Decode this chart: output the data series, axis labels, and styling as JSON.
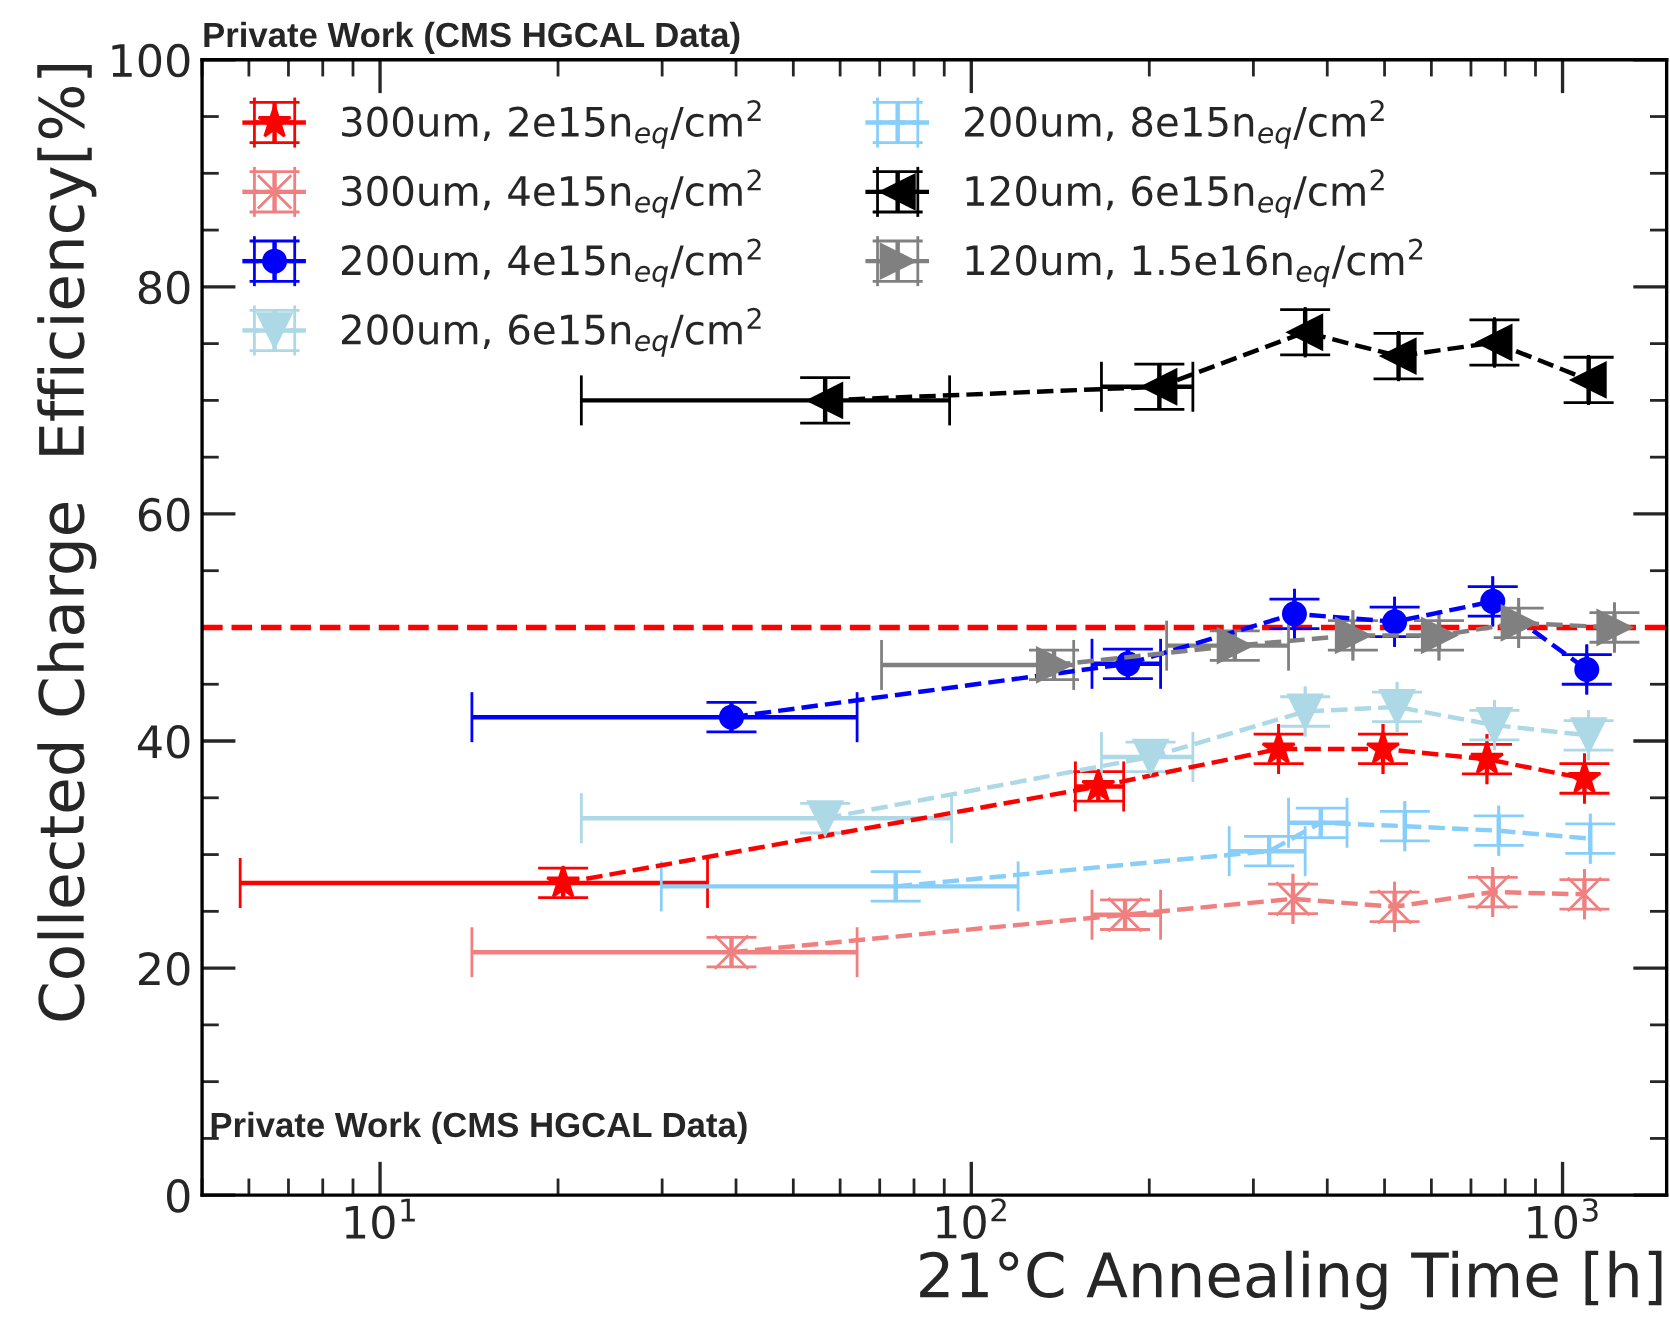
{
  "chart_data": {
    "type": "line",
    "xlabel": "21°C Annealing Time [h]",
    "ylabel": "Collected Charge  Efficiency[%]",
    "annotations": [
      "Private Work (CMS HGCAL Data)",
      "Private Work (CMS HGCAL Data)"
    ],
    "log": "x",
    "xlim": [
      5,
      1500
    ],
    "xticks": [
      {
        "value": 10,
        "label": "10$^{1}$"
      },
      {
        "value": 100,
        "label": "10$^{2}$"
      },
      {
        "value": 1000,
        "label": "10$^{3}$"
      }
    ],
    "ylim": [
      0,
      100
    ],
    "yticks": [
      0,
      20,
      40,
      60,
      80,
      100
    ],
    "legend": "top left",
    "line_style": "dashed",
    "ref_lines": [
      {
        "axis": "y",
        "value": 50,
        "label": null,
        "color": "#ff0000",
        "line_style": "dashed"
      }
    ],
    "series": [
      {
        "name": "300um, 2e15n$_{eq}$/cm$^{2}$",
        "color": "#ff0000",
        "marker": "star",
        "x": [
          20.4,
          164,
          331,
          497,
          745,
          1089
        ],
        "values": [
          27.5,
          36.0,
          39.3,
          39.3,
          38.4,
          36.7
        ],
        "errors": [
          1.3,
          1.3,
          1.3,
          1.3,
          1.3,
          1.3
        ],
        "xerrors": [
          [
            5.8,
            35.8
          ],
          [
            150,
            181
          ],
          null,
          null,
          null,
          null
        ]
      },
      {
        "name": "300um, 4e15n$_{eq}$/cm$^{2}$",
        "color": "#f08080",
        "marker": "cross",
        "x": [
          39.3,
          182,
          350,
          520,
          762,
          1089
        ],
        "values": [
          21.4,
          24.7,
          26.1,
          25.4,
          26.7,
          26.5
        ],
        "errors": [
          1.3,
          1.3,
          1.3,
          1.3,
          1.3,
          1.3
        ],
        "xerrors": [
          [
            14.3,
            64.1
          ],
          [
            160,
            209
          ],
          null,
          null,
          null,
          null
        ]
      },
      {
        "name": "200um, 4e15n$_{eq}$/cm$^{2}$",
        "color": "#0000ff",
        "marker": "circle",
        "x": [
          39.3,
          184,
          352,
          520,
          762,
          1099
        ],
        "values": [
          42.1,
          46.8,
          51.2,
          50.5,
          52.3,
          46.3
        ],
        "errors": [
          1.3,
          1.3,
          1.3,
          1.3,
          1.3,
          1.3
        ],
        "xerrors": [
          [
            14.3,
            64.1
          ],
          [
            160,
            209
          ],
          null,
          null,
          null,
          null
        ]
      },
      {
        "name": "200um, 6e15n$_{eq}$/cm$^{2}$",
        "color": "#add8e6",
        "marker": "triangle-down",
        "x": [
          56.6,
          201,
          367,
          525,
          767,
          1107
        ],
        "values": [
          33.2,
          38.6,
          42.6,
          43.0,
          41.4,
          40.5
        ],
        "errors": [
          1.3,
          1.3,
          1.3,
          1.3,
          1.3,
          1.3
        ],
        "xerrors": [
          [
            21.9,
            92.6
          ],
          [
            166,
            237
          ],
          null,
          null,
          null,
          null
        ]
      },
      {
        "name": "200um, 8e15n$_{eq}$/cm$^{2}$",
        "color": "#87cefa",
        "marker": "none",
        "x": [
          74.5,
          319,
          390,
          541,
          780,
          1114
        ],
        "values": [
          27.2,
          30.3,
          32.8,
          32.5,
          32.1,
          31.4
        ],
        "errors": [
          1.3,
          1.3,
          1.3,
          1.3,
          1.3,
          1.3
        ],
        "xerrors": [
          [
            29.9,
            120
          ],
          [
            273,
            367
          ],
          [
            344,
            432
          ],
          null,
          null,
          null
        ]
      },
      {
        "name": "120um, 6e15n$_{eq}$/cm$^{2}$",
        "color": "#000000",
        "marker": "triangle-left",
        "x": [
          56.6,
          208,
          367,
          528,
          767,
          1107
        ],
        "values": [
          70.0,
          71.2,
          76.0,
          73.9,
          75.1,
          71.8
        ],
        "errors": [
          2.0,
          2.0,
          2.0,
          2.0,
          2.0,
          2.0
        ],
        "xerrors": [
          [
            21.9,
            91.9
          ],
          [
            166,
            237
          ],
          null,
          null,
          null,
          null
        ]
      },
      {
        "name": "120um, 1.5e16n$_{eq}$/cm$^{2}$",
        "color": "#808080",
        "marker": "triangle-right",
        "x": [
          138,
          279,
          442,
          618,
          843,
          1224
        ],
        "values": [
          46.7,
          48.4,
          49.3,
          49.3,
          50.4,
          50.0
        ],
        "errors": [
          1.3,
          1.3,
          1.3,
          1.3,
          1.3,
          1.3
        ],
        "xerrors": [
          [
            70.5,
            149
          ],
          [
            214,
            344
          ],
          null,
          null,
          null,
          null
        ]
      }
    ]
  }
}
